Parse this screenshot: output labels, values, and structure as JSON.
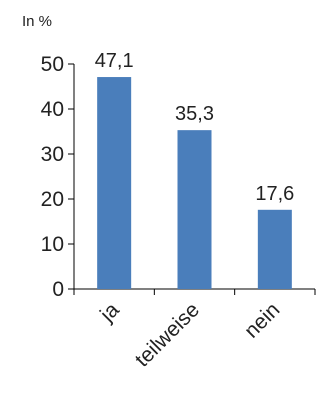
{
  "chart_data": {
    "type": "bar",
    "unit_label": "In %",
    "categories": [
      "ja",
      "teilweise",
      "nein"
    ],
    "values": [
      47.1,
      35.3,
      17.6
    ],
    "data_labels": [
      "47,1",
      "35,3",
      "17,6"
    ],
    "yticks": [
      0,
      10,
      20,
      30,
      40,
      50
    ],
    "ylim": [
      0,
      50
    ],
    "grid": false,
    "legend": "none",
    "bar_color": "#4a7ebb",
    "axis_color": "#000000"
  }
}
